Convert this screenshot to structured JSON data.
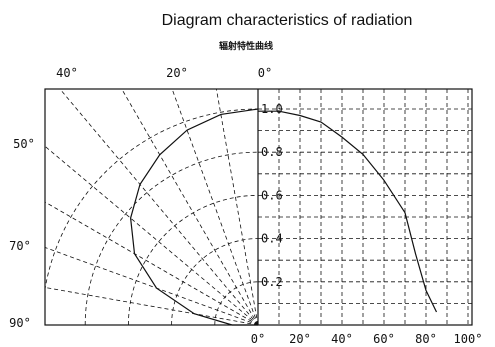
{
  "chart_data": {
    "type": "line",
    "title": "Diagram characteristics of radiation",
    "subtitle": "辐射特性曲线",
    "left_panel": {
      "kind": "polar",
      "angle_ticks": [
        "0°",
        "20°",
        "40°",
        "50°",
        "70°",
        "90°"
      ],
      "series": [
        {
          "angles_deg": [
            0,
            10,
            20,
            30,
            40,
            50,
            60,
            70,
            80,
            90
          ],
          "values": [
            1.0,
            0.99,
            0.96,
            0.91,
            0.85,
            0.77,
            0.66,
            0.5,
            0.3,
            0.12
          ]
        }
      ]
    },
    "right_panel": {
      "kind": "cartesian",
      "x_ticks": [
        "0°",
        "20°",
        "40°",
        "60°",
        "80°",
        "100°"
      ],
      "y_ticks": [
        "0.2",
        "0.4",
        "0.6",
        "0.8",
        "1.0"
      ],
      "xlim": [
        0,
        100
      ],
      "ylim": [
        0,
        1.0
      ],
      "series": [
        {
          "x": [
            0,
            10,
            20,
            30,
            40,
            50,
            60,
            70,
            75,
            80,
            85
          ],
          "y": [
            0.99,
            0.99,
            0.97,
            0.94,
            0.87,
            0.79,
            0.67,
            0.52,
            0.33,
            0.16,
            0.06
          ]
        }
      ]
    }
  }
}
